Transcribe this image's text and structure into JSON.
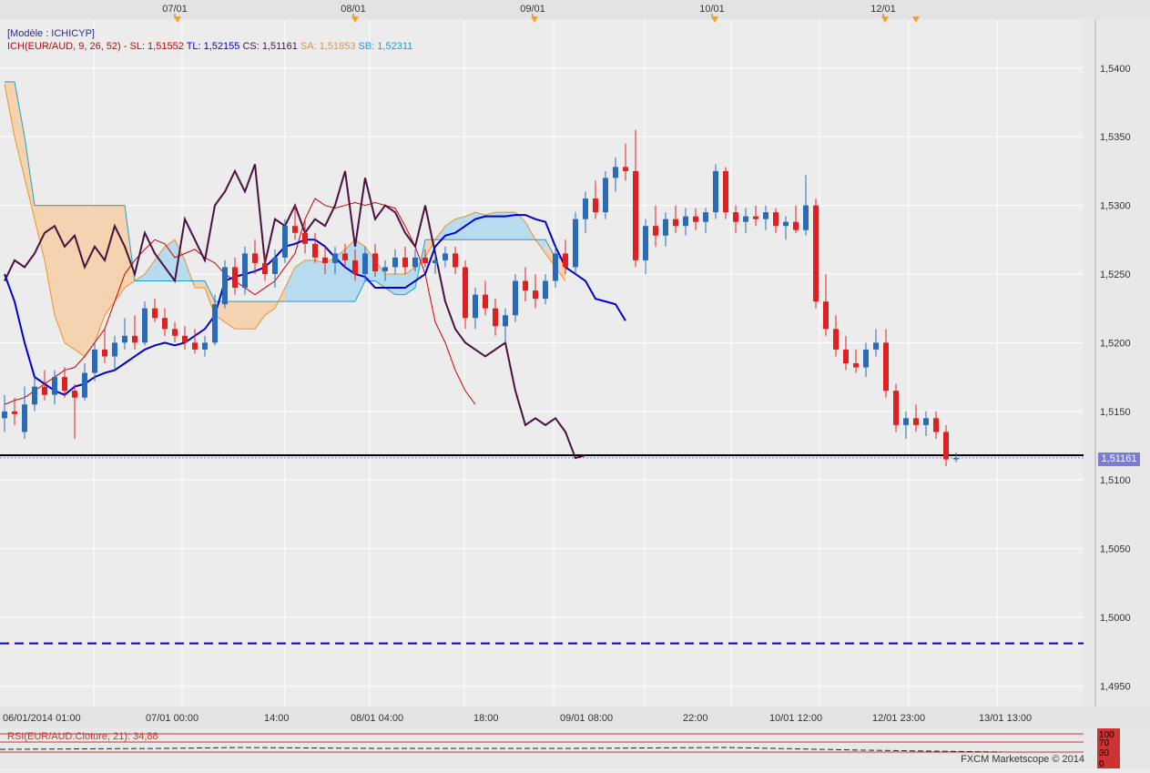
{
  "header": {
    "model_label": "[Modèle : ICHICYP]",
    "indicator_label": "ICH(EUR/AUD, 9, 26, 52) -",
    "sl_text": "SL: 1,51552",
    "tl_text": "TL: 1,52155",
    "cs_text": "CS: 1,51161",
    "sa_text": "SA: 1,51853",
    "sb_text": "SB: 1,52311"
  },
  "top_dates": [
    "07/01",
    "08/01",
    "09/01",
    "10/01",
    "12/01"
  ],
  "current_price": "1,51161",
  "rsi_label": "RSI(EUR/AUD.Cloture, 21): 34,88",
  "rsi_levels": [
    "100",
    "70",
    "30",
    "0"
  ],
  "footer": "FXCM Marketscope © 2014",
  "colors": {
    "background": "#ececec",
    "grid": "#ffffff",
    "bull_candle": "#2a6bb8",
    "bear_candle": "#e02020",
    "tenkan": "#0000cc",
    "kijun": "#cc0000",
    "chikou": "#4a1040",
    "senkou_a": "#e8932a",
    "senkou_b": "#1ea0c8",
    "cloud_bull": "#b7dbef",
    "cloud_bear": "#f6d3b0",
    "price_marker": "#7b7bd8"
  },
  "chart_data": {
    "type": "candlestick",
    "symbol": "EUR/AUD",
    "y_axis": {
      "ticks": [
        "1,5400",
        "1,5350",
        "1,5300",
        "1,5250",
        "1,5200",
        "1,5150",
        "1,5100",
        "1,5050",
        "1,5000",
        "1,4950"
      ],
      "range": [
        1.4935,
        1.5435
      ]
    },
    "x_axis": {
      "ticks": [
        "06/01/2014 01:00",
        "07/01 00:00",
        "14:00",
        "08/01 04:00",
        "18:00",
        "09/01 08:00",
        "22:00",
        "10/01 12:00",
        "12/01 23:00",
        "13/01 13:00"
      ]
    },
    "horizontal_lines": [
      {
        "level": 1.5118,
        "style": "solid",
        "color": "#000000"
      },
      {
        "level": 1.4981,
        "style": "dashed",
        "color": "#0000cc"
      }
    ],
    "candles": [
      [
        1.5145,
        1.5162,
        1.5135,
        1.515
      ],
      [
        1.515,
        1.516,
        1.514,
        1.5148
      ],
      [
        1.5135,
        1.5168,
        1.513,
        1.5155
      ],
      [
        1.5155,
        1.5175,
        1.515,
        1.5168
      ],
      [
        1.5168,
        1.518,
        1.5158,
        1.5162
      ],
      [
        1.5162,
        1.518,
        1.5155,
        1.5175
      ],
      [
        1.5175,
        1.5182,
        1.516,
        1.5165
      ],
      [
        1.5165,
        1.517,
        1.513,
        1.516
      ],
      [
        1.516,
        1.5185,
        1.5158,
        1.5178
      ],
      [
        1.5178,
        1.52,
        1.5172,
        1.5195
      ],
      [
        1.5195,
        1.521,
        1.5185,
        1.519
      ],
      [
        1.519,
        1.5205,
        1.518,
        1.52
      ],
      [
        1.52,
        1.5218,
        1.5195,
        1.5205
      ],
      [
        1.5205,
        1.522,
        1.5195,
        1.52
      ],
      [
        1.52,
        1.523,
        1.5198,
        1.5225
      ],
      [
        1.5225,
        1.5232,
        1.5215,
        1.5218
      ],
      [
        1.5218,
        1.5225,
        1.5205,
        1.521
      ],
      [
        1.521,
        1.5215,
        1.52,
        1.5205
      ],
      [
        1.5205,
        1.5212,
        1.5195,
        1.52
      ],
      [
        1.52,
        1.521,
        1.5192,
        1.5195
      ],
      [
        1.5195,
        1.5205,
        1.519,
        1.52
      ],
      [
        1.52,
        1.5235,
        1.5198,
        1.5228
      ],
      [
        1.5228,
        1.526,
        1.5225,
        1.5255
      ],
      [
        1.5255,
        1.5262,
        1.5235,
        1.524
      ],
      [
        1.524,
        1.527,
        1.5235,
        1.5265
      ],
      [
        1.5265,
        1.5275,
        1.525,
        1.5258
      ],
      [
        1.5258,
        1.5265,
        1.5245,
        1.525
      ],
      [
        1.525,
        1.5268,
        1.524,
        1.5262
      ],
      [
        1.5262,
        1.529,
        1.5258,
        1.5285
      ],
      [
        1.5285,
        1.53,
        1.5275,
        1.528
      ],
      [
        1.528,
        1.529,
        1.5265,
        1.5272
      ],
      [
        1.5272,
        1.528,
        1.5258,
        1.5262
      ],
      [
        1.5262,
        1.527,
        1.525,
        1.5258
      ],
      [
        1.5258,
        1.527,
        1.525,
        1.5265
      ],
      [
        1.5265,
        1.5272,
        1.5255,
        1.526
      ],
      [
        1.526,
        1.5268,
        1.5245,
        1.525
      ],
      [
        1.525,
        1.527,
        1.5245,
        1.5265
      ],
      [
        1.5265,
        1.5272,
        1.5248,
        1.5252
      ],
      [
        1.5252,
        1.526,
        1.5245,
        1.5255
      ],
      [
        1.5255,
        1.5268,
        1.525,
        1.5262
      ],
      [
        1.5262,
        1.527,
        1.525,
        1.5255
      ],
      [
        1.5255,
        1.5268,
        1.5252,
        1.5262
      ],
      [
        1.5262,
        1.5268,
        1.5255,
        1.5258
      ],
      [
        1.5258,
        1.5265,
        1.525,
        1.526
      ],
      [
        1.526,
        1.527,
        1.5255,
        1.5265
      ],
      [
        1.5265,
        1.527,
        1.525,
        1.5255
      ],
      [
        1.5255,
        1.526,
        1.521,
        1.5218
      ],
      [
        1.5218,
        1.524,
        1.521,
        1.5235
      ],
      [
        1.5235,
        1.5245,
        1.522,
        1.5225
      ],
      [
        1.5225,
        1.5232,
        1.5205,
        1.5212
      ],
      [
        1.5212,
        1.5225,
        1.52,
        1.522
      ],
      [
        1.522,
        1.525,
        1.5215,
        1.5245
      ],
      [
        1.5245,
        1.5255,
        1.523,
        1.5238
      ],
      [
        1.5238,
        1.525,
        1.5225,
        1.5232
      ],
      [
        1.5232,
        1.525,
        1.5228,
        1.5245
      ],
      [
        1.5245,
        1.527,
        1.524,
        1.5265
      ],
      [
        1.5265,
        1.5275,
        1.525,
        1.5255
      ],
      [
        1.5255,
        1.5295,
        1.525,
        1.529
      ],
      [
        1.529,
        1.531,
        1.528,
        1.5305
      ],
      [
        1.5305,
        1.5318,
        1.529,
        1.5295
      ],
      [
        1.5295,
        1.5325,
        1.529,
        1.532
      ],
      [
        1.532,
        1.5335,
        1.531,
        1.5328
      ],
      [
        1.5328,
        1.5345,
        1.5318,
        1.5325
      ],
      [
        1.5325,
        1.5355,
        1.5255,
        1.526
      ],
      [
        1.526,
        1.529,
        1.525,
        1.5285
      ],
      [
        1.5285,
        1.53,
        1.527,
        1.5278
      ],
      [
        1.5278,
        1.5295,
        1.527,
        1.529
      ],
      [
        1.529,
        1.53,
        1.528,
        1.5285
      ],
      [
        1.5285,
        1.5298,
        1.5278,
        1.5292
      ],
      [
        1.5292,
        1.5298,
        1.5282,
        1.5288
      ],
      [
        1.5288,
        1.5298,
        1.528,
        1.5295
      ],
      [
        1.5295,
        1.533,
        1.529,
        1.5325
      ],
      [
        1.5325,
        1.5328,
        1.529,
        1.5295
      ],
      [
        1.5295,
        1.53,
        1.528,
        1.5288
      ],
      [
        1.5288,
        1.5298,
        1.528,
        1.5292
      ],
      [
        1.5292,
        1.53,
        1.5285,
        1.529
      ],
      [
        1.529,
        1.53,
        1.5282,
        1.5295
      ],
      [
        1.5295,
        1.5298,
        1.528,
        1.5285
      ],
      [
        1.5285,
        1.5292,
        1.5275,
        1.5288
      ],
      [
        1.5288,
        1.53,
        1.528,
        1.5282
      ],
      [
        1.5282,
        1.5322,
        1.5278,
        1.53
      ],
      [
        1.53,
        1.5305,
        1.5225,
        1.523
      ],
      [
        1.523,
        1.525,
        1.5205,
        1.521
      ],
      [
        1.521,
        1.522,
        1.519,
        1.5195
      ],
      [
        1.5195,
        1.5205,
        1.518,
        1.5185
      ],
      [
        1.5185,
        1.5195,
        1.5178,
        1.5182
      ],
      [
        1.5182,
        1.52,
        1.5175,
        1.5195
      ],
      [
        1.5195,
        1.521,
        1.519,
        1.52
      ],
      [
        1.52,
        1.521,
        1.516,
        1.5165
      ],
      [
        1.5165,
        1.517,
        1.5135,
        1.514
      ],
      [
        1.514,
        1.515,
        1.513,
        1.5145
      ],
      [
        1.5145,
        1.5155,
        1.5135,
        1.514
      ],
      [
        1.514,
        1.515,
        1.5132,
        1.5145
      ],
      [
        1.5145,
        1.515,
        1.513,
        1.5135
      ],
      [
        1.5135,
        1.514,
        1.511,
        1.5115
      ],
      [
        1.5115,
        1.512,
        1.5113,
        1.5116
      ]
    ],
    "ichimoku": {
      "tenkan": [
        1.525,
        1.523,
        1.52,
        1.5175,
        1.517,
        1.5165,
        1.5162,
        1.5168,
        1.517,
        1.5175,
        1.5178,
        1.518,
        1.5185,
        1.519,
        1.5195,
        1.5198,
        1.52,
        1.5198,
        1.52,
        1.5205,
        1.521,
        1.522,
        1.5245,
        1.5248,
        1.525,
        1.5252,
        1.5255,
        1.5262,
        1.527,
        1.5272,
        1.5275,
        1.5275,
        1.527,
        1.5262,
        1.5255,
        1.525,
        1.5248,
        1.524,
        1.524,
        1.524,
        1.524,
        1.5245,
        1.525,
        1.527,
        1.5278,
        1.528,
        1.5285,
        1.529,
        1.5292,
        1.5292,
        1.5292,
        1.5293,
        1.5293,
        1.529,
        1.5288,
        1.527,
        1.5255,
        1.525,
        1.5245,
        1.5232,
        1.523,
        1.5228,
        1.5216
      ],
      "kijun": [
        1.5155,
        1.5158,
        1.516,
        1.5165,
        1.517,
        1.5175,
        1.518,
        1.5182,
        1.519,
        1.52,
        1.521,
        1.523,
        1.525,
        1.526,
        1.5268,
        1.5275,
        1.5272,
        1.5262,
        1.5265,
        1.5268,
        1.5262,
        1.5258,
        1.525,
        1.5245,
        1.524,
        1.5235,
        1.524,
        1.5245,
        1.5255,
        1.5265,
        1.529,
        1.5305,
        1.53,
        1.5298,
        1.53,
        1.5302,
        1.53,
        1.5302,
        1.53,
        1.5298,
        1.5285,
        1.527,
        1.525,
        1.5215,
        1.52,
        1.518,
        1.5165,
        1.5155
      ],
      "chikou": [
        1.5245,
        1.526,
        1.5255,
        1.5265,
        1.528,
        1.5285,
        1.527,
        1.5278,
        1.5255,
        1.527,
        1.526,
        1.5285,
        1.527,
        1.525,
        1.528,
        1.5265,
        1.5255,
        1.5245,
        1.529,
        1.5275,
        1.526,
        1.53,
        1.531,
        1.5325,
        1.531,
        1.533,
        1.5258,
        1.529,
        1.5285,
        1.53,
        1.528,
        1.529,
        1.5285,
        1.53,
        1.5325,
        1.527,
        1.532,
        1.529,
        1.53,
        1.5295,
        1.528,
        1.527,
        1.53,
        1.5265,
        1.523,
        1.521,
        1.52,
        1.5195,
        1.519,
        1.5195,
        1.52,
        1.5165,
        1.514,
        1.5145,
        1.514,
        1.5145,
        1.5135,
        1.5116,
        1.5118
      ],
      "senkou_a": [
        1.5388,
        1.535,
        1.532,
        1.529,
        1.526,
        1.522,
        1.52,
        1.5195,
        1.519,
        1.52,
        1.522,
        1.523,
        1.524,
        1.5245,
        1.525,
        1.526,
        1.527,
        1.5275,
        1.526,
        1.524,
        1.524,
        1.522,
        1.5215,
        1.521,
        1.521,
        1.521,
        1.522,
        1.5225,
        1.524,
        1.5255,
        1.526,
        1.526,
        1.5258,
        1.5262,
        1.5268,
        1.5275,
        1.527,
        1.526,
        1.525,
        1.525,
        1.525,
        1.5255,
        1.5262,
        1.5275,
        1.5285,
        1.529,
        1.5292,
        1.5295,
        1.5293,
        1.5295,
        1.5295,
        1.5295,
        1.5288,
        1.5275,
        1.5265,
        1.5255,
        1.5245
      ],
      "senkou_b": [
        1.539,
        1.539,
        1.535,
        1.53,
        1.53,
        1.53,
        1.53,
        1.53,
        1.53,
        1.53,
        1.53,
        1.53,
        1.53,
        1.5245,
        1.5245,
        1.5245,
        1.5245,
        1.5245,
        1.5245,
        1.5245,
        1.5245,
        1.523,
        1.523,
        1.523,
        1.523,
        1.523,
        1.523,
        1.523,
        1.523,
        1.523,
        1.523,
        1.523,
        1.523,
        1.523,
        1.523,
        1.523,
        1.5245,
        1.5245,
        1.524,
        1.5235,
        1.5235,
        1.524,
        1.5275,
        1.5275,
        1.5275,
        1.5275,
        1.5275,
        1.5275,
        1.5275,
        1.5275,
        1.5275,
        1.5275,
        1.5275,
        1.5275,
        1.5275,
        1.5262,
        1.5262
      ]
    }
  }
}
